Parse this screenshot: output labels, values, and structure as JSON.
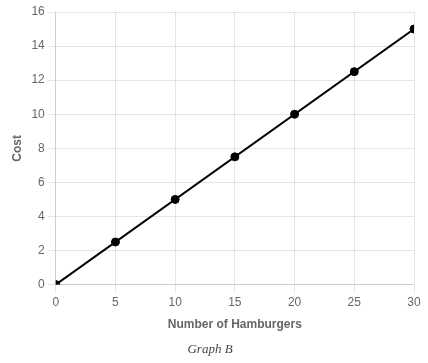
{
  "chart_data": {
    "type": "line",
    "xlabel": "Number of Hamburgers",
    "ylabel": "Cost",
    "subtitle": "Graph B",
    "series": [
      {
        "type": "line",
        "color": "#000000",
        "x": [
          0,
          30
        ],
        "values": [
          0,
          15
        ]
      },
      {
        "type": "scatter",
        "color": "#000000",
        "marker": "circle",
        "x": [
          0,
          5,
          10,
          15,
          20,
          25,
          30
        ],
        "values": [
          0,
          2.5,
          5,
          7.5,
          10,
          12.5,
          15
        ]
      }
    ],
    "xlim": [
      0,
      30
    ],
    "ylim": [
      0,
      16
    ],
    "xticks": [
      0,
      5,
      10,
      15,
      20,
      25,
      30
    ],
    "yticks": [
      0,
      2,
      4,
      6,
      8,
      10,
      12,
      14,
      16
    ],
    "grid": true
  }
}
